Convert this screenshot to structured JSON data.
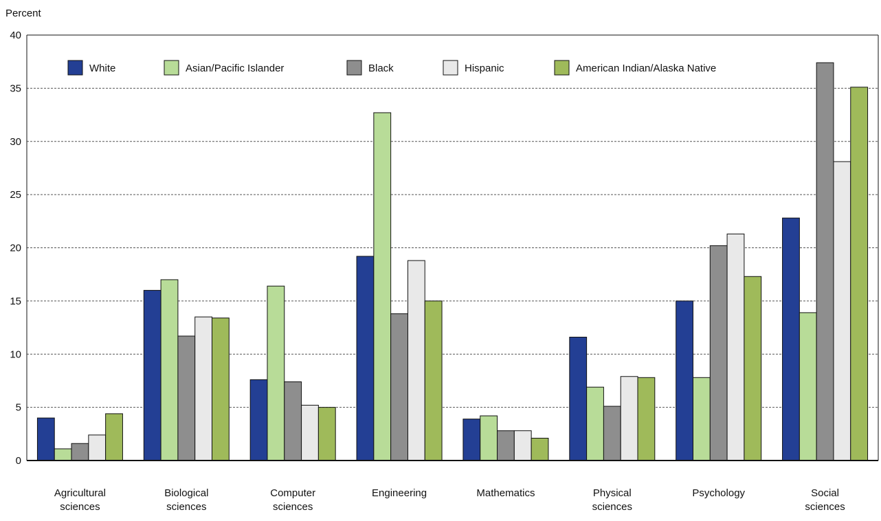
{
  "chart_data": {
    "type": "bar",
    "ylabel": "Percent",
    "xlabel": "",
    "ylim": [
      0,
      40
    ],
    "yticks": [
      0,
      5,
      10,
      15,
      20,
      25,
      30,
      35,
      40
    ],
    "grid": true,
    "legend_position": "top",
    "categories": [
      [
        "Agricultural",
        "sciences"
      ],
      [
        "Biological",
        "sciences"
      ],
      [
        "Computer",
        "sciences"
      ],
      [
        "Engineering"
      ],
      [
        "Mathematics"
      ],
      [
        "Physical",
        "sciences"
      ],
      [
        "Psychology"
      ],
      [
        "Social",
        "sciences"
      ]
    ],
    "series": [
      {
        "name": "White",
        "color": "#233f94",
        "values": [
          4.0,
          16.0,
          7.6,
          19.2,
          3.9,
          11.6,
          15.0,
          22.8
        ]
      },
      {
        "name": "Asian/Pacific Islander",
        "color": "#b8dc98",
        "values": [
          1.1,
          17.0,
          16.4,
          32.7,
          4.2,
          6.9,
          7.8,
          13.9
        ]
      },
      {
        "name": "Black",
        "color": "#8e8e8e",
        "values": [
          1.6,
          11.7,
          7.4,
          13.8,
          2.8,
          5.1,
          20.2,
          37.4
        ]
      },
      {
        "name": "Hispanic",
        "color": "#e9e9e9",
        "values": [
          2.4,
          13.5,
          5.2,
          18.8,
          2.8,
          7.9,
          21.3,
          28.1
        ]
      },
      {
        "name": "American Indian/Alaska Native",
        "color": "#9fba5a",
        "values": [
          4.4,
          13.4,
          5.0,
          15.0,
          2.1,
          7.8,
          17.3,
          35.1
        ]
      }
    ]
  }
}
